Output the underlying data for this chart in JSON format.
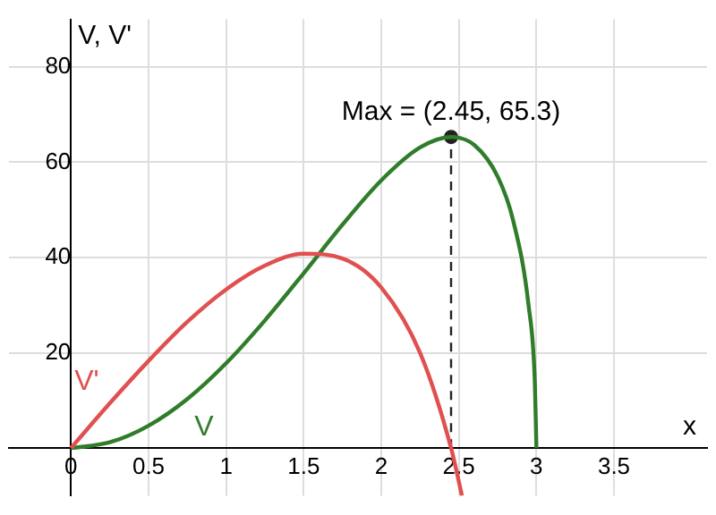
{
  "chart_data": {
    "type": "line",
    "xlabel": "x",
    "ylabel": "V, V'",
    "xlim": [
      -0.4,
      4.1
    ],
    "ylim": [
      -10,
      90
    ],
    "xticks": [
      0,
      0.5,
      1,
      1.5,
      2,
      2.5,
      3,
      3.5
    ],
    "yticks": [
      {
        "value": 0,
        "label": null
      },
      20,
      40,
      60,
      80
    ],
    "grid": true,
    "legend": false,
    "marker": "none",
    "line_style": "solid",
    "series": [
      {
        "name": "V'",
        "color": "#e05050",
        "x": [
          0,
          0.25,
          0.5,
          0.75,
          1,
          1.25,
          1.5,
          1.75,
          2,
          2.25,
          2.45,
          2.52
        ],
        "values": [
          0,
          9.4,
          18.3,
          26.5,
          33.3,
          38.3,
          40.8,
          39.8,
          33.7,
          20,
          0,
          -10
        ]
      },
      {
        "name": "V",
        "color": "#2f7d2b",
        "x": [
          0,
          0.25,
          0.5,
          0.75,
          1,
          1.25,
          1.5,
          1.75,
          2,
          2.25,
          2.45,
          2.6,
          2.75,
          2.85,
          2.95,
          2.99,
          3
        ],
        "values": [
          0,
          1.2,
          4.7,
          10.3,
          17.8,
          26.8,
          36.7,
          46.9,
          56.2,
          63.1,
          65.3,
          63.6,
          57,
          47.8,
          29.8,
          13.8,
          0
        ]
      },
      {
        "type": "line",
        "line_style": "dashed",
        "color": "#222222",
        "x": [
          2.45,
          2.45
        ],
        "values": [
          0,
          65.3
        ]
      },
      {
        "type": "scatter",
        "marker": "circle",
        "color": "#222222",
        "x": [
          2.45
        ],
        "values": [
          65.3
        ]
      }
    ],
    "annotations": [
      {
        "text": "Max = (2.45, 65.3)",
        "x": 2.45,
        "y": 65.3
      }
    ]
  }
}
